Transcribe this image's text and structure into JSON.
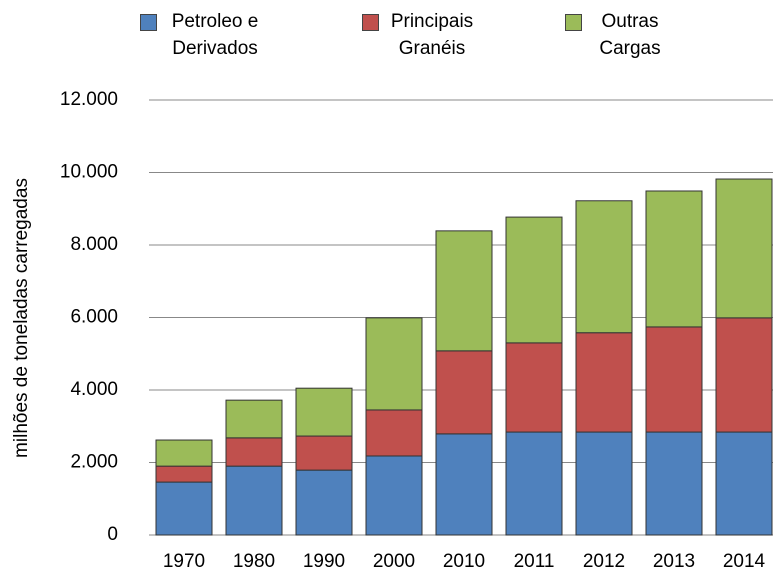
{
  "chart_data": {
    "type": "stacked_bar",
    "y_label": "milhões de toneladas carregadas",
    "categories": [
      "1970",
      "1980",
      "1990",
      "2000",
      "2010",
      "2011",
      "2012",
      "2013",
      "2014"
    ],
    "series": [
      {
        "name": "Petroleo e Derivados",
        "color": "#4f81bd",
        "values": [
          1460,
          1900,
          1790,
          2180,
          2790,
          2840,
          2840,
          2840,
          2840
        ]
      },
      {
        "name": "Principais Granéis",
        "color": "#c0504d",
        "values": [
          440,
          780,
          940,
          1270,
          2290,
          2460,
          2740,
          2900,
          3150
        ]
      },
      {
        "name": "Outras Cargas",
        "color": "#9bbb59",
        "values": [
          720,
          1040,
          1320,
          2540,
          3310,
          3470,
          3640,
          3750,
          3830
        ]
      }
    ],
    "ylim": [
      0,
      12000
    ],
    "yticks": [
      0,
      {
        "value": 2000,
        "label": "2.000"
      },
      {
        "value": 4000,
        "label": "4.000"
      },
      {
        "value": 6000,
        "label": "6.000"
      },
      {
        "value": 8000,
        "label": "8.000"
      },
      {
        "value": 10000,
        "label": "10.000"
      },
      {
        "value": 12000,
        "label": "12.000"
      }
    ],
    "grid": true,
    "legend": "top"
  }
}
